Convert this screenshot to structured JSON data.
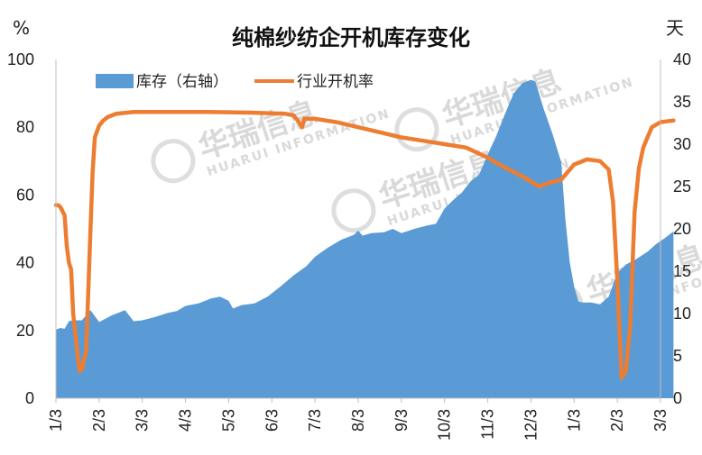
{
  "chart_data": {
    "type": "area+line",
    "title": "纯棉纱纺企开机库存变化",
    "left_axis": {
      "unit": "%",
      "min": 0,
      "max": 100,
      "ticks": [
        0,
        20,
        40,
        60,
        80,
        100
      ]
    },
    "right_axis": {
      "unit": "天",
      "min": 0,
      "max": 40,
      "ticks": [
        0,
        5,
        10,
        15,
        20,
        25,
        30,
        35,
        40
      ]
    },
    "x_tick_labels": [
      "1/3",
      "2/3",
      "3/3",
      "4/3",
      "5/3",
      "6/3",
      "7/3",
      "8/3",
      "9/3",
      "10/3",
      "11/3",
      "12/3",
      "1/3",
      "2/3",
      "3/3"
    ],
    "watermark": {
      "brand": "华瑞信息",
      "sub": "HUARUI INFORMATION"
    },
    "series": [
      {
        "name": "库存（右轴）",
        "kind": "area",
        "axis": "right",
        "color": "#5b9bd5",
        "points": [
          [
            0,
            8.1
          ],
          [
            0.1,
            8.3
          ],
          [
            0.2,
            8.2
          ],
          [
            0.3,
            9.1
          ],
          [
            0.4,
            9.2
          ],
          [
            0.6,
            9.2
          ],
          [
            0.8,
            10.4
          ],
          [
            1.0,
            9.0
          ],
          [
            1.3,
            9.8
          ],
          [
            1.6,
            10.4
          ],
          [
            1.8,
            9.1
          ],
          [
            2.0,
            9.2
          ],
          [
            2.3,
            9.6
          ],
          [
            2.6,
            10.1
          ],
          [
            2.8,
            10.3
          ],
          [
            3.0,
            10.9
          ],
          [
            3.3,
            11.2
          ],
          [
            3.6,
            11.8
          ],
          [
            3.8,
            12.0
          ],
          [
            4.0,
            11.5
          ],
          [
            4.1,
            10.6
          ],
          [
            4.3,
            11.0
          ],
          [
            4.6,
            11.2
          ],
          [
            4.9,
            12.0
          ],
          [
            5.2,
            13.2
          ],
          [
            5.5,
            14.5
          ],
          [
            5.8,
            15.6
          ],
          [
            6.0,
            16.7
          ],
          [
            6.3,
            17.8
          ],
          [
            6.6,
            18.7
          ],
          [
            6.9,
            19.3
          ],
          [
            7.0,
            19.8
          ],
          [
            7.1,
            19.2
          ],
          [
            7.3,
            19.5
          ],
          [
            7.6,
            19.6
          ],
          [
            7.8,
            20.0
          ],
          [
            8.0,
            19.5
          ],
          [
            8.3,
            20.0
          ],
          [
            8.6,
            20.4
          ],
          [
            8.8,
            20.6
          ],
          [
            9.0,
            22.4
          ],
          [
            9.2,
            23.4
          ],
          [
            9.4,
            24.3
          ],
          [
            9.6,
            25.6
          ],
          [
            9.8,
            26.4
          ],
          [
            10.0,
            28.8
          ],
          [
            10.2,
            31.0
          ],
          [
            10.4,
            33.6
          ],
          [
            10.6,
            36.0
          ],
          [
            10.8,
            37.2
          ],
          [
            11.0,
            37.6
          ],
          [
            11.1,
            37.4
          ],
          [
            11.3,
            34.1
          ],
          [
            11.5,
            31.2
          ],
          [
            11.7,
            27.9
          ],
          [
            11.8,
            21.0
          ],
          [
            11.9,
            16.0
          ],
          [
            12.0,
            13.2
          ],
          [
            12.1,
            11.4
          ],
          [
            12.2,
            11.3
          ],
          [
            12.4,
            11.3
          ],
          [
            12.6,
            11.1
          ],
          [
            12.8,
            12.0
          ],
          [
            13.0,
            14.8
          ],
          [
            13.2,
            15.8
          ],
          [
            13.4,
            16.3
          ],
          [
            13.7,
            17.3
          ],
          [
            13.9,
            18.2
          ],
          [
            14.1,
            18.9
          ],
          [
            14.3,
            19.7
          ]
        ]
      },
      {
        "name": "行业开机率",
        "kind": "line",
        "axis": "left",
        "color": "#ed7d31",
        "points": [
          [
            0,
            57
          ],
          [
            0.05,
            57
          ],
          [
            0.1,
            56.5
          ],
          [
            0.2,
            54
          ],
          [
            0.25,
            45
          ],
          [
            0.3,
            40
          ],
          [
            0.35,
            38
          ],
          [
            0.4,
            25
          ],
          [
            0.5,
            13
          ],
          [
            0.55,
            8
          ],
          [
            0.6,
            8.5
          ],
          [
            0.7,
            14
          ],
          [
            0.8,
            50
          ],
          [
            0.85,
            67
          ],
          [
            0.9,
            77
          ],
          [
            1.0,
            80.5
          ],
          [
            1.1,
            82
          ],
          [
            1.2,
            83
          ],
          [
            1.4,
            84
          ],
          [
            1.8,
            84.5
          ],
          [
            2.5,
            84.5
          ],
          [
            3.5,
            84.5
          ],
          [
            4.5,
            84.3
          ],
          [
            5.3,
            84
          ],
          [
            5.5,
            83.5
          ],
          [
            5.6,
            82
          ],
          [
            5.7,
            80
          ],
          [
            5.75,
            82.5
          ],
          [
            6.0,
            82.5
          ],
          [
            6.5,
            81.5
          ],
          [
            7.0,
            80
          ],
          [
            7.5,
            78.5
          ],
          [
            8.0,
            77
          ],
          [
            8.5,
            76
          ],
          [
            9.0,
            75
          ],
          [
            9.5,
            74
          ],
          [
            10.0,
            71
          ],
          [
            10.2,
            69.5
          ],
          [
            10.5,
            67.5
          ],
          [
            10.8,
            65.5
          ],
          [
            11.0,
            64
          ],
          [
            11.2,
            62.5
          ],
          [
            11.4,
            63.5
          ],
          [
            11.7,
            64.5
          ],
          [
            12.0,
            69
          ],
          [
            12.3,
            70.5
          ],
          [
            12.6,
            70
          ],
          [
            12.8,
            67.5
          ],
          [
            12.9,
            58
          ],
          [
            13.0,
            35
          ],
          [
            13.1,
            6
          ],
          [
            13.2,
            8
          ],
          [
            13.3,
            22
          ],
          [
            13.4,
            55
          ],
          [
            13.5,
            68
          ],
          [
            13.6,
            74
          ],
          [
            13.7,
            77
          ],
          [
            13.8,
            80
          ],
          [
            14.0,
            81.5
          ],
          [
            14.3,
            82
          ]
        ]
      }
    ],
    "legend": [
      "库存（右轴）",
      "行业开机率"
    ]
  }
}
